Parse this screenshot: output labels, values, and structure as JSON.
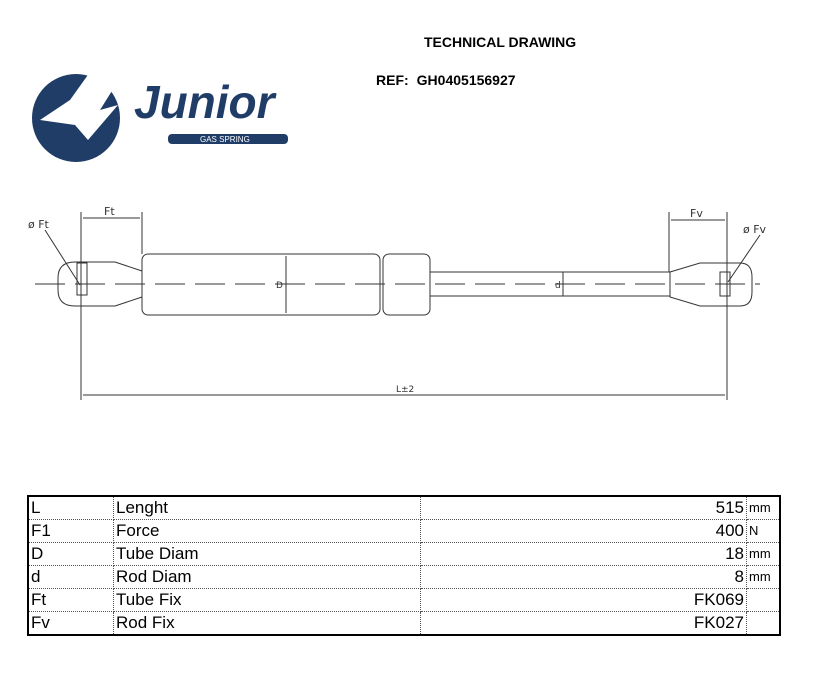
{
  "header": {
    "title": "TECHNICAL DRAWING",
    "ref_label": "REF:",
    "ref_value": "GH0405156927"
  },
  "logo": {
    "brand": "Junior",
    "tagline": "GAS SPRING",
    "color": "#1f3d66"
  },
  "drawing": {
    "labels": {
      "ft_dim": "Ft",
      "ft_diam": "ø Ft",
      "fv_dim": "Fv",
      "fv_diam": "ø Fv",
      "tube_diam": "D",
      "rod_diam": "d",
      "length": "L±2"
    }
  },
  "specs": [
    {
      "symbol": "L",
      "name": "Lenght",
      "value": "515",
      "unit": "mm"
    },
    {
      "symbol": "F1",
      "name": "Force",
      "value": "400",
      "unit": "N"
    },
    {
      "symbol": "D",
      "name": "Tube Diam",
      "value": "18",
      "unit": "mm"
    },
    {
      "symbol": "d",
      "name": "Rod Diam",
      "value": "8",
      "unit": "mm"
    },
    {
      "symbol": "Ft",
      "name": "Tube Fix",
      "value": "FK069",
      "unit": ""
    },
    {
      "symbol": "Fv",
      "name": "Rod Fix",
      "value": "FK027",
      "unit": ""
    }
  ]
}
